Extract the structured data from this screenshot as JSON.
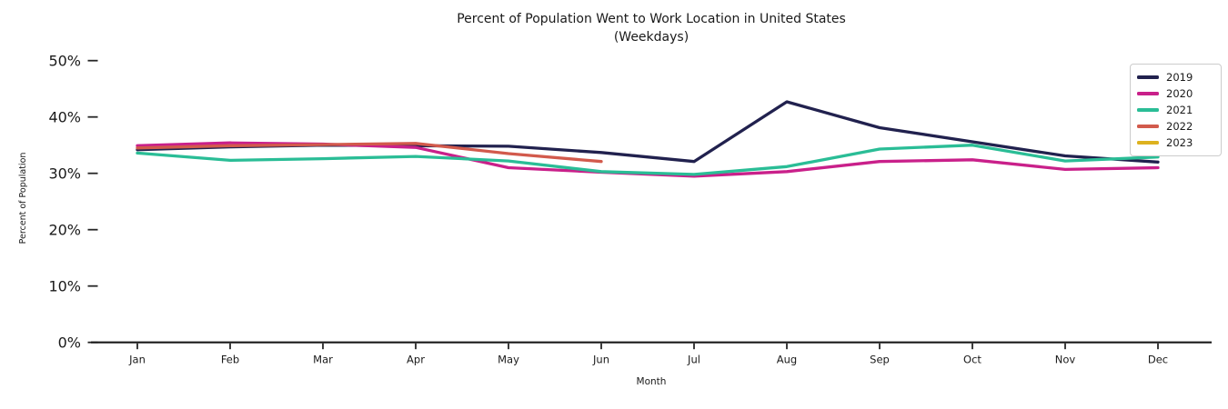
{
  "chart_data": {
    "type": "line",
    "title": "Percent of Population Went to Work Location in United States",
    "subtitle": "(Weekdays)",
    "xlabel": "Month",
    "ylabel": "Percent of Population",
    "categories": [
      "Jan",
      "Feb",
      "Mar",
      "Apr",
      "May",
      "Jun",
      "Jul",
      "Aug",
      "Sep",
      "Oct",
      "Nov",
      "Dec"
    ],
    "y_tick_values": [
      0,
      10,
      20,
      30,
      40,
      50
    ],
    "y_tick_labels": [
      "0%",
      "10%",
      "20%",
      "30%",
      "40%",
      "50%"
    ],
    "ylim": [
      0,
      52
    ],
    "grid": false,
    "legend_position": "upper right",
    "series": [
      {
        "name": "2019",
        "color": "#21214e",
        "values": [
          34.2,
          34.7,
          35.0,
          34.9,
          34.8,
          33.7,
          32.1,
          42.7,
          38.1,
          35.6,
          33.1,
          32.0
        ]
      },
      {
        "name": "2020",
        "color": "#c9208a",
        "values": [
          34.9,
          35.4,
          35.2,
          34.6,
          31.0,
          30.2,
          29.5,
          30.3,
          32.1,
          32.4,
          30.7,
          31.0
        ]
      },
      {
        "name": "2021",
        "color": "#2abd96",
        "values": [
          33.6,
          32.3,
          32.6,
          33.0,
          32.2,
          30.3,
          29.8,
          31.2,
          34.3,
          35.0,
          32.2,
          32.9
        ]
      },
      {
        "name": "2022",
        "color": "#d25a4c",
        "values": [
          34.5,
          34.9,
          35.1,
          35.3,
          33.5,
          32.1
        ]
      },
      {
        "name": "2023",
        "color": "#ddb21f",
        "values": []
      }
    ]
  }
}
